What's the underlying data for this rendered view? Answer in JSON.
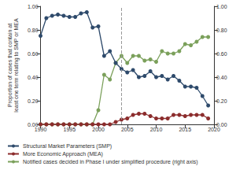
{
  "chart_data": {
    "type": "line",
    "y_label": "Proportion of cases that contain at least one term relating to SMP or MEA",
    "x": [
      1990,
      1991,
      1992,
      1993,
      1994,
      1995,
      1996,
      1997,
      1998,
      1999,
      2000,
      2001,
      2002,
      2003,
      2004,
      2005,
      2006,
      2007,
      2008,
      2009,
      2010,
      2011,
      2012,
      2013,
      2014,
      2015,
      2016,
      2017,
      2018,
      2019
    ],
    "series": [
      {
        "name": "Structural Market Parameters (SMP)",
        "color": "#2e4a6b",
        "marker": "circle",
        "line_style": "solid",
        "values": [
          0.75,
          0.9,
          0.92,
          0.93,
          0.92,
          0.91,
          0.91,
          0.94,
          0.95,
          0.82,
          0.83,
          0.58,
          0.62,
          0.52,
          0.47,
          0.44,
          0.46,
          0.4,
          0.41,
          0.45,
          0.4,
          0.41,
          0.38,
          0.41,
          0.37,
          0.32,
          0.32,
          0.31,
          0.24,
          0.16
        ]
      },
      {
        "name": "More Economic Approach (MEA)",
        "color": "#8c2d2d",
        "marker": "circle",
        "line_style": "solid",
        "values": [
          0,
          0,
          0,
          0,
          0,
          0,
          0,
          0,
          0,
          0,
          0,
          0,
          0,
          0.02,
          0.04,
          0.05,
          0.08,
          0.09,
          0.09,
          0.07,
          0.05,
          0.05,
          0.05,
          0.08,
          0.08,
          0.07,
          0.08,
          0.08,
          0.08,
          0.05
        ]
      },
      {
        "name": "Notified cases decided in Phase I under simplified procedure (right axis)",
        "color": "#7ba05b",
        "marker": "circle",
        "line_style": "solid",
        "axis": "y2",
        "values": [
          0,
          0,
          0,
          0,
          0,
          0,
          0,
          0,
          0,
          0,
          0.12,
          0.42,
          0.38,
          0.52,
          0.58,
          0.52,
          0.58,
          0.58,
          0.54,
          0.55,
          0.53,
          0.62,
          0.6,
          0.6,
          0.62,
          0.68,
          0.67,
          0.7,
          0.74,
          0.74
        ]
      }
    ],
    "xlim": [
      1990,
      2020
    ],
    "xticks": [
      1990,
      1995,
      2000,
      2005,
      2010,
      2015,
      2020
    ],
    "ylim": [
      0,
      1
    ],
    "yticks": [
      {
        "value": 0,
        "label": "0.00"
      },
      {
        "value": 0.2,
        "label": "0.20"
      },
      {
        "value": 0.4,
        "label": "0.40"
      },
      {
        "value": 0.6,
        "label": "0.60"
      },
      {
        "value": 0.8,
        "label": "0.80"
      },
      {
        "value": 1,
        "label": "1.00"
      }
    ],
    "y2lim": [
      0,
      1
    ],
    "y2ticks": [
      {
        "value": 0,
        "label": "0.00"
      },
      {
        "value": 0.2,
        "label": "0.20"
      },
      {
        "value": 0.4,
        "label": "0.40"
      },
      {
        "value": 0.6,
        "label": "0.60"
      },
      {
        "value": 0.8,
        "label": "0.80"
      },
      {
        "value": 1,
        "label": "1.00"
      }
    ],
    "vlines": [
      2004
    ],
    "grid": false,
    "legend": "bottom-left"
  }
}
